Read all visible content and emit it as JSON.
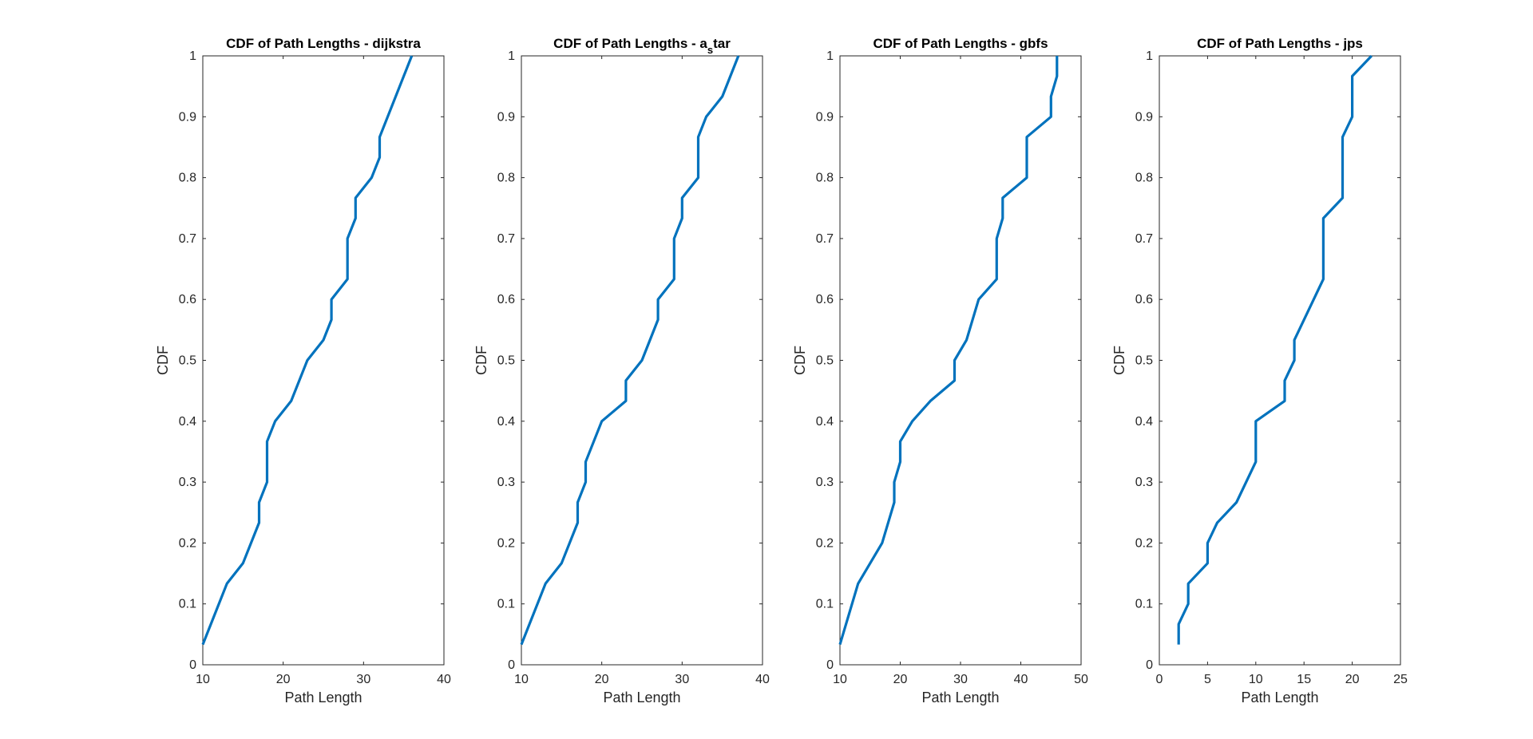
{
  "chart_data": [
    {
      "type": "line",
      "title": "CDF of Path Lengths - dijkstra",
      "xlabel": "Path Length",
      "ylabel": "CDF",
      "xlim": [
        10,
        40
      ],
      "ylim": [
        0,
        1
      ],
      "xticks": [
        "10",
        "20",
        "30",
        "40"
      ],
      "yticks": [
        "0",
        "0.1",
        "0.2",
        "0.3",
        "0.4",
        "0.5",
        "0.6",
        "0.7",
        "0.8",
        "0.9",
        "1"
      ],
      "grid": false,
      "series": [
        {
          "color": "#0072BD",
          "x": [
            10,
            13,
            15,
            17,
            17,
            18,
            18,
            19,
            21,
            23,
            25,
            26,
            26,
            28,
            28,
            29,
            29,
            31,
            32,
            32,
            36
          ],
          "y": [
            0.0333,
            0.1333,
            0.1667,
            0.2333,
            0.2667,
            0.3,
            0.3667,
            0.4,
            0.4333,
            0.5,
            0.5333,
            0.5667,
            0.6,
            0.6333,
            0.7,
            0.7333,
            0.7667,
            0.8,
            0.8333,
            0.8667,
            1.0
          ]
        }
      ]
    },
    {
      "type": "line",
      "title": "CDF of Path Lengths - a",
      "title_subscript": "s",
      "title_suffix": "tar",
      "xlabel": "Path Length",
      "ylabel": "CDF",
      "xlim": [
        10,
        40
      ],
      "ylim": [
        0,
        1
      ],
      "xticks": [
        "10",
        "20",
        "30",
        "40"
      ],
      "yticks": [
        "0",
        "0.1",
        "0.2",
        "0.3",
        "0.4",
        "0.5",
        "0.6",
        "0.7",
        "0.8",
        "0.9",
        "1"
      ],
      "grid": false,
      "series": [
        {
          "color": "#0072BD",
          "x": [
            10,
            13,
            15,
            17,
            17,
            18,
            18,
            20,
            23,
            23,
            25,
            27,
            27,
            29,
            29,
            30,
            30,
            32,
            32,
            33,
            35,
            37
          ],
          "y": [
            0.0333,
            0.1333,
            0.1667,
            0.2333,
            0.2667,
            0.3,
            0.3333,
            0.4,
            0.4333,
            0.4667,
            0.5,
            0.5667,
            0.6,
            0.6333,
            0.7,
            0.7333,
            0.7667,
            0.8,
            0.8667,
            0.9,
            0.9333,
            1.0
          ]
        }
      ]
    },
    {
      "type": "line",
      "title": "CDF of Path Lengths - gbfs",
      "xlabel": "Path Length",
      "ylabel": "CDF",
      "xlim": [
        10,
        50
      ],
      "ylim": [
        0,
        1
      ],
      "xticks": [
        "10",
        "20",
        "30",
        "40",
        "50"
      ],
      "yticks": [
        "0",
        "0.1",
        "0.2",
        "0.3",
        "0.4",
        "0.5",
        "0.6",
        "0.7",
        "0.8",
        "0.9",
        "1"
      ],
      "grid": false,
      "series": [
        {
          "color": "#0072BD",
          "x": [
            10,
            13,
            17,
            19,
            19,
            20,
            20,
            22,
            25,
            29,
            29,
            31,
            33,
            36,
            36,
            37,
            37,
            41,
            41,
            45,
            45,
            46,
            46
          ],
          "y": [
            0.0333,
            0.1333,
            0.2,
            0.2667,
            0.3,
            0.3333,
            0.3667,
            0.4,
            0.4333,
            0.4667,
            0.5,
            0.5333,
            0.6,
            0.6333,
            0.7,
            0.7333,
            0.7667,
            0.8,
            0.8667,
            0.9,
            0.9333,
            0.9667,
            1.0
          ]
        }
      ]
    },
    {
      "type": "line",
      "title": "CDF of Path Lengths - jps",
      "xlabel": "Path Length",
      "ylabel": "CDF",
      "xlim": [
        0,
        25
      ],
      "ylim": [
        0,
        1
      ],
      "xticks": [
        "0",
        "5",
        "10",
        "15",
        "20",
        "25"
      ],
      "yticks": [
        "0",
        "0.1",
        "0.2",
        "0.3",
        "0.4",
        "0.5",
        "0.6",
        "0.7",
        "0.8",
        "0.9",
        "1"
      ],
      "grid": false,
      "series": [
        {
          "color": "#0072BD",
          "x": [
            2,
            2,
            3,
            3,
            5,
            5,
            6,
            8,
            10,
            10,
            13,
            13,
            14,
            14,
            17,
            17,
            19,
            19,
            20,
            20,
            22
          ],
          "y": [
            0.0333,
            0.0667,
            0.1,
            0.1333,
            0.1667,
            0.2,
            0.2333,
            0.2667,
            0.3333,
            0.4,
            0.4333,
            0.4667,
            0.5,
            0.5333,
            0.6333,
            0.7333,
            0.7667,
            0.8667,
            0.9,
            0.9667,
            1.0
          ]
        }
      ]
    }
  ]
}
